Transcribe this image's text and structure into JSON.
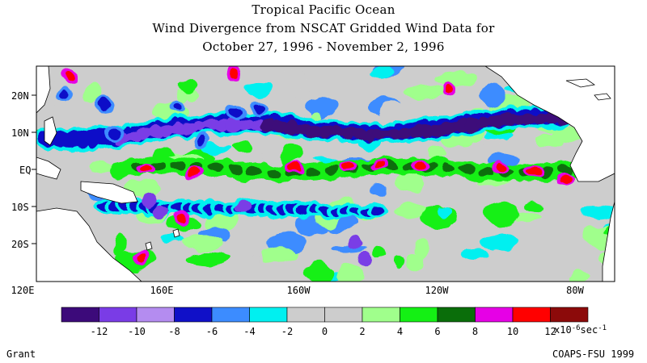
{
  "title": {
    "line1": "Tropical Pacific Ocean",
    "line2": "Wind Divergence from NSCAT Gridded Wind Data for",
    "line3": "October 27, 1996 - November 2, 1996"
  },
  "map": {
    "lat_labels": [
      "20N",
      "10N",
      "EQ",
      "10S",
      "20S"
    ],
    "lon_labels": [
      "120E",
      "160E",
      "160W",
      "120W",
      "80W"
    ],
    "land_color": "#ffffff",
    "coast_color": "#000000"
  },
  "colorbar": {
    "colors": [
      "#3c0a7a",
      "#7a3ce6",
      "#b48cf0",
      "#1010c8",
      "#3c8cff",
      "#00f0f0",
      "#cdcdcd",
      "#cdcdcd",
      "#a0ff8c",
      "#14f014",
      "#0a6e0a",
      "#e600e6",
      "#ff0000",
      "#8c0a0a"
    ],
    "tick_labels": [
      "-12",
      "-10",
      "-8",
      "-6",
      "-4",
      "-2",
      "0",
      "2",
      "4",
      "6",
      "8",
      "10",
      "12"
    ],
    "unit_base": "x10",
    "unit_exp1": "-6",
    "unit_mid": "sec",
    "unit_exp2": "-1"
  },
  "footer": {
    "left": "Grant",
    "right": "COAPS-FSU 1999"
  }
}
